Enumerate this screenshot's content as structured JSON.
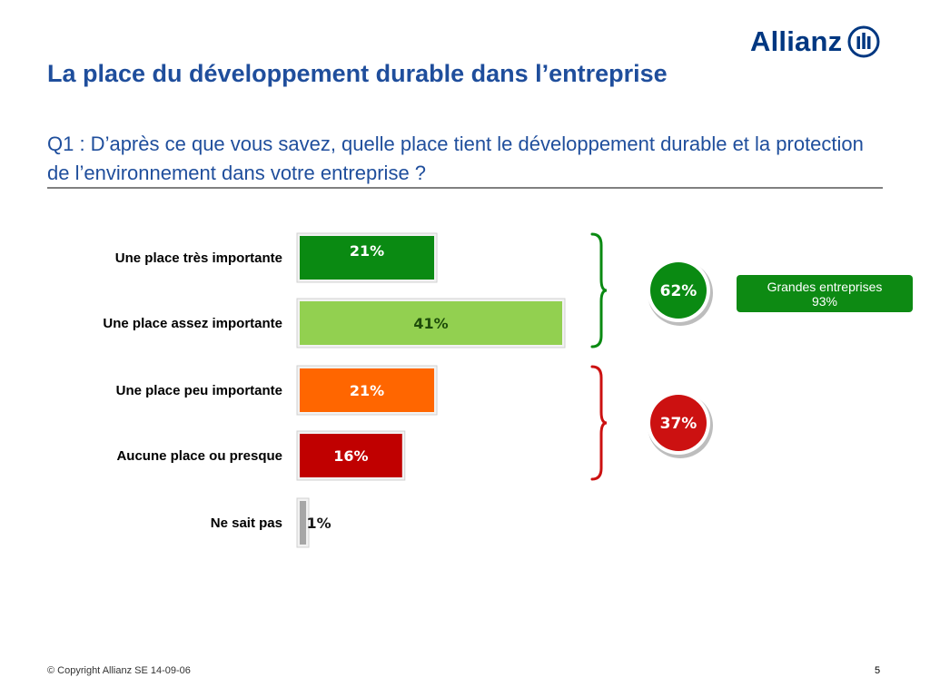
{
  "header": {
    "brand": "Allianz",
    "title": "La place du développement durable dans l’entreprise",
    "question": "Q1 : D’après ce que vous savez, quelle place tient le développement durable et la protection de l’environnement dans votre entreprise ?"
  },
  "chart_data": {
    "type": "bar",
    "orientation": "horizontal",
    "categories": [
      "Une place très importante",
      "Une place assez importante",
      "Une place peu importante",
      "Aucune place ou presque",
      "Ne sait pas"
    ],
    "values": [
      21,
      41,
      21,
      16,
      1
    ],
    "value_labels": [
      "21%",
      "41%",
      "21%",
      "16%",
      "1%"
    ],
    "colors": [
      "#0a8a12",
      "#92d050",
      "#ff6600",
      "#c00000",
      "#a6a6a6"
    ],
    "groups": [
      {
        "label": "62%",
        "from": 0,
        "to": 1,
        "color": "#0a8a12"
      },
      {
        "label": "37%",
        "from": 2,
        "to": 3,
        "color": "#cc1111"
      }
    ],
    "xlim": [
      0,
      41
    ]
  },
  "note": {
    "line1": "Grandes entreprises",
    "line2": "93%",
    "color": "#0d8a13"
  },
  "footer": {
    "copyright": "© Copyright Allianz SE 14-09-06",
    "page": "5"
  }
}
